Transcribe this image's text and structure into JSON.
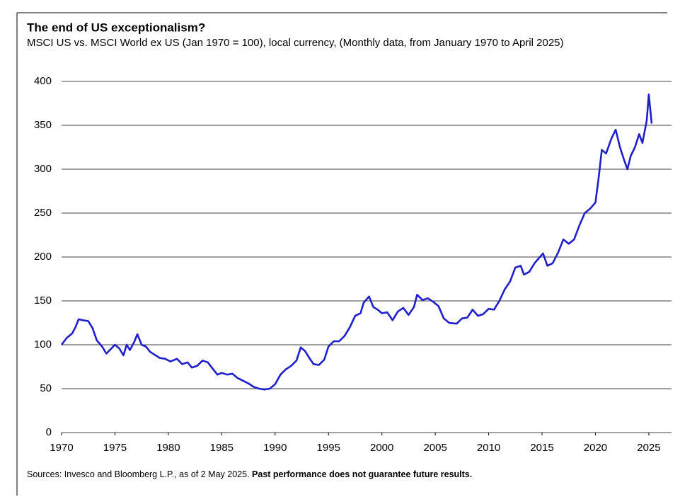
{
  "chart_data": {
    "type": "line",
    "title": "The end of US exceptionalism?",
    "subtitle": "MSCI US vs. MSCI World ex US (Jan 1970 = 100), local currency, (Monthly data, from January 1970 to April 2025)",
    "source": "Sources: Invesco and Bloomberg L.P., as of 2 May 2025.",
    "disclaimer": "Past performance does not guarantee future results.",
    "xlim": [
      1970,
      2025.27
    ],
    "xticks": [
      1970,
      1975,
      1980,
      1985,
      1990,
      1995,
      2000,
      2005,
      2010,
      2015,
      2020,
      2025
    ],
    "ylim": [
      0,
      400
    ],
    "yticks": [
      0,
      50,
      100,
      150,
      200,
      250,
      300,
      350,
      400
    ],
    "grid": true,
    "series": [
      {
        "color": "#1f1fcc",
        "x": [
          1970,
          1970.5,
          1971,
          1971.3,
          1971.6,
          1972,
          1972.5,
          1972.9,
          1973.3,
          1973.8,
          1974.2,
          1974.6,
          1975,
          1975.4,
          1975.8,
          1976.1,
          1976.4,
          1976.8,
          1977.1,
          1977.5,
          1977.9,
          1978.3,
          1978.8,
          1979.2,
          1979.7,
          1980.2,
          1980.8,
          1981.3,
          1981.8,
          1982.2,
          1982.7,
          1983.2,
          1983.7,
          1984.2,
          1984.6,
          1985,
          1985.5,
          1986,
          1986.5,
          1987,
          1987.5,
          1988,
          1988.5,
          1989,
          1989.5,
          1990,
          1990.5,
          1991,
          1991.5,
          1992,
          1992.4,
          1992.8,
          1993.2,
          1993.6,
          1994.1,
          1994.6,
          1995,
          1995.5,
          1996,
          1996.5,
          1997,
          1997.5,
          1998,
          1998.3,
          1998.8,
          1999.2,
          1999.6,
          2000,
          2000.5,
          2001,
          2001.5,
          2002,
          2002.5,
          2003,
          2003.3,
          2003.8,
          2004.3,
          2004.8,
          2005.3,
          2005.8,
          2006.3,
          2007,
          2007.5,
          2008,
          2008.5,
          2009,
          2009.5,
          2010,
          2010.5,
          2011,
          2011.5,
          2012,
          2012.5,
          2013,
          2013.3,
          2013.8,
          2014.3,
          2014.8,
          2015.1,
          2015.5,
          2016,
          2016.5,
          2017,
          2017.5,
          2018,
          2018.5,
          2019,
          2019.5,
          2020,
          2020.3,
          2020.6,
          2021,
          2021.5,
          2021.9,
          2022.3,
          2022.7,
          2023,
          2023.3,
          2023.7,
          2024.1,
          2024.4,
          2024.8,
          2025,
          2025.27
        ],
        "values": [
          100,
          108,
          113,
          120,
          129,
          128,
          127,
          119,
          105,
          98,
          90,
          95,
          100,
          96,
          88,
          100,
          94,
          103,
          112,
          100,
          98,
          92,
          88,
          85,
          84,
          81,
          84,
          78,
          80,
          74,
          76,
          82,
          80,
          72,
          66,
          68,
          66,
          67,
          62,
          59,
          56,
          52,
          50,
          49,
          50,
          55,
          66,
          72,
          76,
          82,
          97,
          93,
          85,
          78,
          77,
          83,
          98,
          104,
          104,
          110,
          120,
          133,
          136,
          148,
          155,
          143,
          140,
          136,
          137,
          128,
          138,
          142,
          134,
          143,
          157,
          151,
          153,
          149,
          144,
          130,
          125,
          124,
          130,
          131,
          140,
          133,
          135,
          141,
          140,
          150,
          163,
          172,
          188,
          190,
          180,
          183,
          193,
          200,
          204,
          190,
          193,
          205,
          220,
          215,
          220,
          236,
          250,
          255,
          262,
          290,
          322,
          318,
          335,
          345,
          325,
          310,
          300,
          315,
          325,
          340,
          330,
          355,
          385,
          352
        ]
      }
    ]
  }
}
